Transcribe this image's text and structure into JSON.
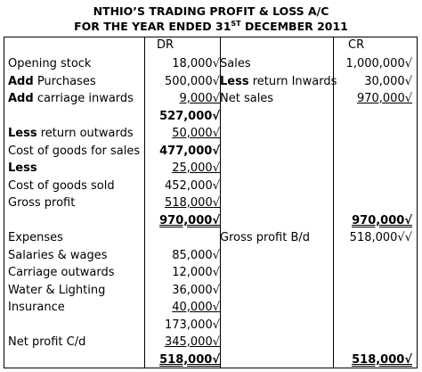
{
  "title": {
    "line1": "NTHIO’S TRADING PROFIT & LOSS A/C",
    "line2_pre": "FOR THE YEAR ENDED 31",
    "line2_sup": "ST",
    "line2_post": " DECEMBER 2011"
  },
  "header": {
    "dr": "DR",
    "cr": "CR"
  },
  "rows": [
    {
      "label_bold": "",
      "label": "Opening stock",
      "dr": "18,000√",
      "crlabel_bold": "",
      "crlabel": "Sales",
      "cr": "1,000,000√"
    },
    {
      "label_bold": "Add",
      "label": " Purchases",
      "dr": "500,000√",
      "crlabel_bold": "Less",
      "crlabel": " return Inwards",
      "cr": "30,000√"
    },
    {
      "label_bold": "Add",
      "label": " carriage inwards",
      "dr": "9,000√",
      "crlabel_bold": "",
      "crlabel": "Net sales",
      "cr": "970,000√"
    },
    {
      "label_bold": "",
      "label": "",
      "dr": "527,000√",
      "crlabel_bold": "",
      "crlabel": "",
      "cr": ""
    },
    {
      "label_bold": "Less",
      "label": " return outwards",
      "dr": "50,000√",
      "crlabel_bold": "",
      "crlabel": "",
      "cr": ""
    },
    {
      "label_bold": "",
      "label": "Cost of goods for sales",
      "dr": "477,000√",
      "crlabel_bold": "",
      "crlabel": "",
      "cr": ""
    },
    {
      "label_bold": "Less",
      "label": "",
      "dr": "25,000√",
      "crlabel_bold": "",
      "crlabel": "",
      "cr": ""
    },
    {
      "label_bold": "",
      "label": "Cost of goods sold",
      "dr": "452,000√",
      "crlabel_bold": "",
      "crlabel": "",
      "cr": ""
    },
    {
      "label_bold": "",
      "label": "Gross profit",
      "dr": "518,000√",
      "crlabel_bold": "",
      "crlabel": "",
      "cr": ""
    },
    {
      "label_bold": "",
      "label": "",
      "dr": "970,000√",
      "crlabel_bold": "",
      "crlabel": "",
      "cr": "970,000√"
    },
    {
      "label_bold": "",
      "label": "Expenses",
      "dr": "",
      "crlabel_bold": "",
      "crlabel": "Gross profit B/d",
      "cr": "518,000√√"
    },
    {
      "label_bold": "",
      "label": "Salaries & wages",
      "dr": "85,000√",
      "crlabel_bold": "",
      "crlabel": "",
      "cr": ""
    },
    {
      "label_bold": "",
      "label": "Carriage outwards",
      "dr": "12,000√",
      "crlabel_bold": "",
      "crlabel": "",
      "cr": ""
    },
    {
      "label_bold": "",
      "label": "Water & Lighting",
      "dr": "36,000√",
      "crlabel_bold": "",
      "crlabel": "",
      "cr": ""
    },
    {
      "label_bold": "",
      "label": "Insurance",
      "dr": "40,000√",
      "crlabel_bold": "",
      "crlabel": "",
      "cr": ""
    },
    {
      "label_bold": "",
      "label": "",
      "dr": "173,000√",
      "crlabel_bold": "",
      "crlabel": "",
      "cr": ""
    },
    {
      "label_bold": "",
      "label": "Net profit C/d",
      "dr": "345,000√",
      "crlabel_bold": "",
      "crlabel": "",
      "cr": ""
    },
    {
      "label_bold": "",
      "label": "",
      "dr": "518,000√",
      "crlabel_bold": "",
      "crlabel": "",
      "cr": "518,000√"
    }
  ]
}
